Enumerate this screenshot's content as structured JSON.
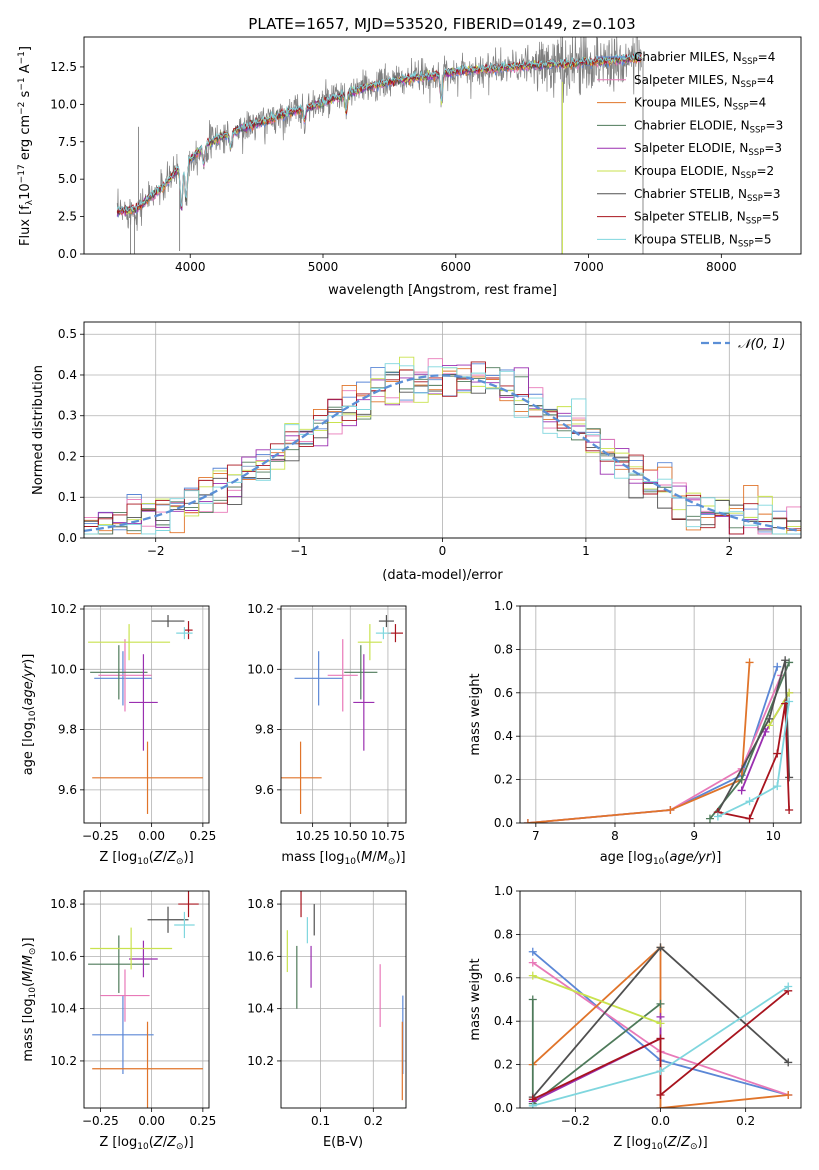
{
  "figure_title": "PLATE=1657, MJD=53520, FIBERID=0149, z=0.103",
  "colors": {
    "chabrier_miles": "#5b87d6",
    "salpeter_miles": "#e879b8",
    "kroupa_miles": "#e0742a",
    "chabrier_elodie": "#4e7a5a",
    "salpeter_elodie": "#9a2fb0",
    "kroupa_elodie": "#c9e24e",
    "chabrier_stelib": "#505050",
    "salpeter_stelib": "#a8141e",
    "kroupa_stelib": "#7fd6de",
    "data_line": "#7f7f7f",
    "gauss_line": "#5b8fd6"
  },
  "chart_data": [
    {
      "id": "spectrum",
      "type": "line",
      "xlabel": "wavelength [Angstrom, rest frame]",
      "ylabel": "Flux [f_λ 10^-17 erg cm^-2 s^-1 A^-1]",
      "xlim": [
        3200,
        8600
      ],
      "ylim": [
        0,
        14.5
      ],
      "xticks": [
        "4000",
        "5000",
        "6000",
        "7000",
        "8000"
      ],
      "yticks": [
        "0.0",
        "2.5",
        "5.0",
        "7.5",
        "10.0",
        "12.5"
      ],
      "grid": false,
      "legend_position": "upper-right",
      "legend": [
        {
          "label": "Chabrier MILES, N",
          "sub": "SSP",
          "suffix": "=4",
          "color_key": "chabrier_miles"
        },
        {
          "label": "Salpeter MILES, N",
          "sub": "SSP",
          "suffix": "=4",
          "color_key": "salpeter_miles"
        },
        {
          "label": "Kroupa MILES, N",
          "sub": "SSP",
          "suffix": "=4",
          "color_key": "kroupa_miles"
        },
        {
          "label": "Chabrier ELODIE, N",
          "sub": "SSP",
          "suffix": "=3",
          "color_key": "chabrier_elodie"
        },
        {
          "label": "Salpeter ELODIE, N",
          "sub": "SSP",
          "suffix": "=3",
          "color_key": "salpeter_elodie"
        },
        {
          "label": "Kroupa ELODIE, N",
          "sub": "SSP",
          "suffix": "=2",
          "color_key": "kroupa_elodie"
        },
        {
          "label": "Chabrier STELIB, N",
          "sub": "SSP",
          "suffix": "=3",
          "color_key": "chabrier_stelib"
        },
        {
          "label": "Salpeter STELIB, N",
          "sub": "SSP",
          "suffix": "=5",
          "color_key": "salpeter_stelib"
        },
        {
          "label": "Kroupa STELIB, N",
          "sub": "SSP",
          "suffix": "=5",
          "color_key": "kroupa_stelib"
        }
      ],
      "continuum": {
        "x": [
          3450,
          3600,
          3700,
          3800,
          3900,
          4000,
          4100,
          4200,
          4400,
          4600,
          4800,
          5000,
          5200,
          5500,
          5800,
          6000,
          6300,
          6600,
          7000,
          7400
        ],
        "y": [
          2.8,
          3.0,
          3.8,
          4.5,
          5.6,
          6.3,
          7.2,
          7.7,
          8.4,
          9.0,
          9.6,
          10.1,
          10.8,
          11.5,
          11.9,
          12.2,
          12.4,
          12.6,
          12.8,
          13.1
        ]
      },
      "absorption_lines": [
        {
          "x": 3934,
          "depth": 2.8
        },
        {
          "x": 3969,
          "depth": 2.5
        },
        {
          "x": 4102,
          "depth": 1.2
        },
        {
          "x": 4305,
          "depth": 1.0
        },
        {
          "x": 4861,
          "depth": 0.8
        },
        {
          "x": 5175,
          "depth": 1.2
        },
        {
          "x": 5892,
          "depth": 1.8
        }
      ],
      "data_spikes": [
        {
          "x": 3550,
          "y": 0.0
        },
        {
          "x": 3580,
          "y": 0.0
        },
        {
          "x": 3610,
          "y": 8.5
        },
        {
          "x": 3920,
          "y": 0.2
        },
        {
          "x": 6800,
          "y": 0.0
        },
        {
          "x": 7410,
          "y": 0.0
        }
      ]
    },
    {
      "id": "residual_histogram",
      "type": "line",
      "xlabel": "(data-model)/error",
      "ylabel": "Normed distribution",
      "xlim": [
        -2.5,
        2.5
      ],
      "ylim": [
        0,
        0.53
      ],
      "xticks": [
        "−2",
        "−1",
        "0",
        "1",
        "2"
      ],
      "yticks": [
        "0.0",
        "0.1",
        "0.2",
        "0.3",
        "0.4",
        "0.5"
      ],
      "grid": true,
      "legend_position": "upper-right",
      "legend": [
        {
          "label": "𝒩(0, 1)",
          "color_key": "gauss_line"
        }
      ],
      "bin_width": 0.1
    },
    {
      "id": "age_vs_Z",
      "type": "scatter",
      "xlabel": "Z [log10(Z/Z⊙)]",
      "ylabel": "age [log10(age/yr)]",
      "xlim": [
        -0.33,
        0.28
      ],
      "ylim": [
        9.49,
        10.21
      ],
      "xticks": [
        "−0.25",
        "0.00",
        "0.25"
      ],
      "yticks": [
        "9.6",
        "9.8",
        "10.0",
        "10.2"
      ],
      "grid": true,
      "points": [
        {
          "color_key": "chabrier_miles",
          "x": -0.14,
          "xerr": 0.14,
          "y": 9.97,
          "yerr": 0.09
        },
        {
          "color_key": "salpeter_miles",
          "x": -0.13,
          "xerr": 0.13,
          "y": 9.98,
          "yerr": 0.12
        },
        {
          "color_key": "kroupa_miles",
          "x": -0.02,
          "xerr": 0.27,
          "y": 9.64,
          "yerr": 0.12
        },
        {
          "color_key": "chabrier_elodie",
          "x": -0.16,
          "xerr": 0.14,
          "y": 9.99,
          "yerr": 0.09
        },
        {
          "color_key": "salpeter_elodie",
          "x": -0.04,
          "xerr": 0.07,
          "y": 9.89,
          "yerr": 0.16
        },
        {
          "color_key": "kroupa_elodie",
          "x": -0.11,
          "xerr": 0.2,
          "y": 10.09,
          "yerr": 0.06
        },
        {
          "color_key": "chabrier_stelib",
          "x": 0.08,
          "xerr": 0.08,
          "y": 10.16,
          "yerr": 0.02
        },
        {
          "color_key": "salpeter_stelib",
          "x": 0.18,
          "xerr": 0.02,
          "y": 10.13,
          "yerr": 0.03
        },
        {
          "color_key": "kroupa_stelib",
          "x": 0.16,
          "xerr": 0.04,
          "y": 10.12,
          "yerr": 0.02
        }
      ]
    },
    {
      "id": "age_vs_mass",
      "type": "scatter",
      "xlabel": "mass [log10(M/M⊙)]",
      "ylabel": "",
      "xlim": [
        10.04,
        10.87
      ],
      "ylim": [
        9.49,
        10.21
      ],
      "xticks": [
        "10.25",
        "10.50",
        "10.75"
      ],
      "yticks": [
        "9.6",
        "9.8",
        "10.0",
        "10.2"
      ],
      "grid": true,
      "points": [
        {
          "color_key": "chabrier_miles",
          "x": 10.29,
          "xerr": 0.16,
          "y": 9.97,
          "yerr": 0.09
        },
        {
          "color_key": "salpeter_miles",
          "x": 10.45,
          "xerr": 0.1,
          "y": 9.98,
          "yerr": 0.12
        },
        {
          "color_key": "kroupa_miles",
          "x": 10.17,
          "xerr": 0.14,
          "y": 9.64,
          "yerr": 0.12
        },
        {
          "color_key": "chabrier_elodie",
          "x": 10.57,
          "xerr": 0.11,
          "y": 9.99,
          "yerr": 0.09
        },
        {
          "color_key": "salpeter_elodie",
          "x": 10.59,
          "xerr": 0.07,
          "y": 9.89,
          "yerr": 0.16
        },
        {
          "color_key": "kroupa_elodie",
          "x": 10.63,
          "xerr": 0.08,
          "y": 10.09,
          "yerr": 0.06
        },
        {
          "color_key": "chabrier_stelib",
          "x": 10.74,
          "xerr": 0.05,
          "y": 10.16,
          "yerr": 0.02
        },
        {
          "color_key": "salpeter_stelib",
          "x": 10.8,
          "xerr": 0.05,
          "y": 10.12,
          "yerr": 0.03
        },
        {
          "color_key": "kroupa_stelib",
          "x": 10.72,
          "xerr": 0.05,
          "y": 10.12,
          "yerr": 0.02
        }
      ]
    },
    {
      "id": "weight_vs_age",
      "type": "line",
      "xlabel": "age [log10(age/yr)]",
      "ylabel": "mass weight",
      "xlim": [
        6.8,
        10.35
      ],
      "ylim": [
        0,
        1
      ],
      "xticks": [
        "7",
        "8",
        "9",
        "10"
      ],
      "yticks": [
        "0.0",
        "0.2",
        "0.4",
        "0.6",
        "0.8",
        "1.0"
      ],
      "grid": true,
      "series": [
        {
          "color_key": "chabrier_miles",
          "points": [
            [
              6.9,
              0.0
            ],
            [
              8.7,
              0.06
            ],
            [
              9.6,
              0.22
            ],
            [
              10.05,
              0.72
            ]
          ]
        },
        {
          "color_key": "salpeter_miles",
          "points": [
            [
              6.9,
              0.0
            ],
            [
              8.7,
              0.06
            ],
            [
              9.6,
              0.25
            ],
            [
              10.1,
              0.68
            ]
          ]
        },
        {
          "color_key": "kroupa_miles",
          "points": [
            [
              6.9,
              0.0
            ],
            [
              8.7,
              0.06
            ],
            [
              9.6,
              0.2
            ],
            [
              9.7,
              0.74
            ]
          ]
        },
        {
          "color_key": "chabrier_elodie",
          "points": [
            [
              9.2,
              0.02
            ],
            [
              9.6,
              0.2
            ],
            [
              10.2,
              0.74
            ]
          ]
        },
        {
          "color_key": "salpeter_elodie",
          "points": [
            [
              9.6,
              0.15
            ],
            [
              9.9,
              0.42
            ],
            [
              10.2,
              0.6
            ]
          ]
        },
        {
          "color_key": "kroupa_elodie",
          "points": [
            [
              9.95,
              0.45
            ],
            [
              10.2,
              0.6
            ]
          ]
        },
        {
          "color_key": "chabrier_stelib",
          "points": [
            [
              9.3,
              0.05
            ],
            [
              9.95,
              0.48
            ],
            [
              10.15,
              0.75
            ],
            [
              10.2,
              0.21
            ]
          ]
        },
        {
          "color_key": "salpeter_stelib",
          "points": [
            [
              9.3,
              0.05
            ],
            [
              9.7,
              0.02
            ],
            [
              10.05,
              0.32
            ],
            [
              10.15,
              0.55
            ],
            [
              10.2,
              0.06
            ]
          ]
        },
        {
          "color_key": "kroupa_stelib",
          "points": [
            [
              9.3,
              0.03
            ],
            [
              9.7,
              0.1
            ],
            [
              10.05,
              0.17
            ],
            [
              10.2,
              0.56
            ]
          ]
        }
      ]
    },
    {
      "id": "mass_vs_Z",
      "type": "scatter",
      "xlabel": "Z [log10(Z/Z⊙)]",
      "ylabel": "mass [log10(M/M⊙)]",
      "xlim": [
        -0.33,
        0.28
      ],
      "ylim": [
        10.02,
        10.85
      ],
      "xticks": [
        "−0.25",
        "0.00",
        "0.25"
      ],
      "yticks": [
        "10.2",
        "10.4",
        "10.6",
        "10.8"
      ],
      "grid": true,
      "points": [
        {
          "color_key": "chabrier_miles",
          "x": -0.14,
          "xerr": 0.15,
          "y": 10.3,
          "yerr": 0.15
        },
        {
          "color_key": "salpeter_miles",
          "x": -0.13,
          "xerr": 0.12,
          "y": 10.45,
          "yerr": 0.1
        },
        {
          "color_key": "kroupa_miles",
          "x": -0.02,
          "xerr": 0.27,
          "y": 10.17,
          "yerr": 0.18
        },
        {
          "color_key": "chabrier_elodie",
          "x": -0.16,
          "xerr": 0.15,
          "y": 10.57,
          "yerr": 0.11
        },
        {
          "color_key": "salpeter_elodie",
          "x": -0.04,
          "xerr": 0.07,
          "y": 10.59,
          "yerr": 0.07
        },
        {
          "color_key": "kroupa_elodie",
          "x": -0.1,
          "xerr": 0.2,
          "y": 10.63,
          "yerr": 0.08
        },
        {
          "color_key": "chabrier_stelib",
          "x": 0.08,
          "xerr": 0.1,
          "y": 10.74,
          "yerr": 0.05
        },
        {
          "color_key": "salpeter_stelib",
          "x": 0.18,
          "xerr": 0.05,
          "y": 10.8,
          "yerr": 0.05
        },
        {
          "color_key": "kroupa_stelib",
          "x": 0.16,
          "xerr": 0.05,
          "y": 10.72,
          "yerr": 0.05
        }
      ]
    },
    {
      "id": "mass_vs_ebv",
      "type": "scatter",
      "xlabel": "E(B-V)",
      "ylabel": "",
      "xlim": [
        0.025,
        0.262
      ],
      "ylim": [
        10.02,
        10.85
      ],
      "xticks": [
        "0.1",
        "0.2"
      ],
      "yticks": [
        "10.2",
        "10.4",
        "10.6",
        "10.8"
      ],
      "grid": true,
      "points": [
        {
          "color_key": "chabrier_miles",
          "x": 0.256,
          "xerr": 0,
          "y": 10.3,
          "yerr": 0.15
        },
        {
          "color_key": "salpeter_miles",
          "x": 0.213,
          "xerr": 0,
          "y": 10.45,
          "yerr": 0.12
        },
        {
          "color_key": "kroupa_miles",
          "x": 0.255,
          "xerr": 0,
          "y": 10.2,
          "yerr": 0.15
        },
        {
          "color_key": "chabrier_elodie",
          "x": 0.055,
          "xerr": 0,
          "y": 10.52,
          "yerr": 0.12
        },
        {
          "color_key": "salpeter_elodie",
          "x": 0.082,
          "xerr": 0,
          "y": 10.56,
          "yerr": 0.08
        },
        {
          "color_key": "kroupa_elodie",
          "x": 0.037,
          "xerr": 0,
          "y": 10.62,
          "yerr": 0.08
        },
        {
          "color_key": "chabrier_stelib",
          "x": 0.088,
          "xerr": 0,
          "y": 10.74,
          "yerr": 0.06
        },
        {
          "color_key": "salpeter_stelib",
          "x": 0.063,
          "xerr": 0,
          "y": 10.8,
          "yerr": 0.05
        },
        {
          "color_key": "kroupa_stelib",
          "x": 0.075,
          "xerr": 0,
          "y": 10.7,
          "yerr": 0.05
        }
      ]
    },
    {
      "id": "weight_vs_Z",
      "type": "line",
      "xlabel": "Z [log10(Z/Z⊙)]",
      "ylabel": "mass weight",
      "xlim": [
        -0.33,
        0.33
      ],
      "ylim": [
        0,
        1
      ],
      "xticks": [
        "−0.2",
        "0.0",
        "0.2"
      ],
      "yticks": [
        "0.0",
        "0.2",
        "0.4",
        "0.6",
        "0.8",
        "1.0"
      ],
      "grid": true,
      "series": [
        {
          "color_key": "chabrier_miles",
          "points": [
            [
              -0.3,
              0.72
            ],
            [
              0.0,
              0.22
            ],
            [
              0.3,
              0.06
            ]
          ]
        },
        {
          "color_key": "salpeter_miles",
          "points": [
            [
              -0.3,
              0.67
            ],
            [
              0.0,
              0.26
            ],
            [
              0.3,
              0.06
            ]
          ]
        },
        {
          "color_key": "kroupa_miles",
          "points": [
            [
              -0.3,
              0.2
            ],
            [
              0.0,
              0.74
            ],
            [
              0.0,
              0.0
            ],
            [
              0.3,
              0.06
            ]
          ]
        },
        {
          "color_key": "chabrier_elodie",
          "points": [
            [
              -0.3,
              0.5
            ],
            [
              -0.3,
              0.02
            ],
            [
              0.0,
              0.48
            ]
          ]
        },
        {
          "color_key": "salpeter_elodie",
          "points": [
            [
              -0.3,
              0.03
            ],
            [
              0.0,
              0.32
            ],
            [
              0.0,
              0.42
            ]
          ]
        },
        {
          "color_key": "kroupa_elodie",
          "points": [
            [
              -0.3,
              0.61
            ],
            [
              0.0,
              0.39
            ]
          ]
        },
        {
          "color_key": "chabrier_stelib",
          "points": [
            [
              -0.3,
              0.05
            ],
            [
              0.0,
              0.74
            ],
            [
              0.3,
              0.21
            ]
          ]
        },
        {
          "color_key": "salpeter_stelib",
          "points": [
            [
              -0.3,
              0.04
            ],
            [
              0.0,
              0.32
            ],
            [
              0.0,
              0.06
            ],
            [
              0.3,
              0.54
            ]
          ]
        },
        {
          "color_key": "kroupa_stelib",
          "points": [
            [
              -0.3,
              0.01
            ],
            [
              0.0,
              0.17
            ],
            [
              0.3,
              0.56
            ]
          ]
        }
      ]
    }
  ]
}
